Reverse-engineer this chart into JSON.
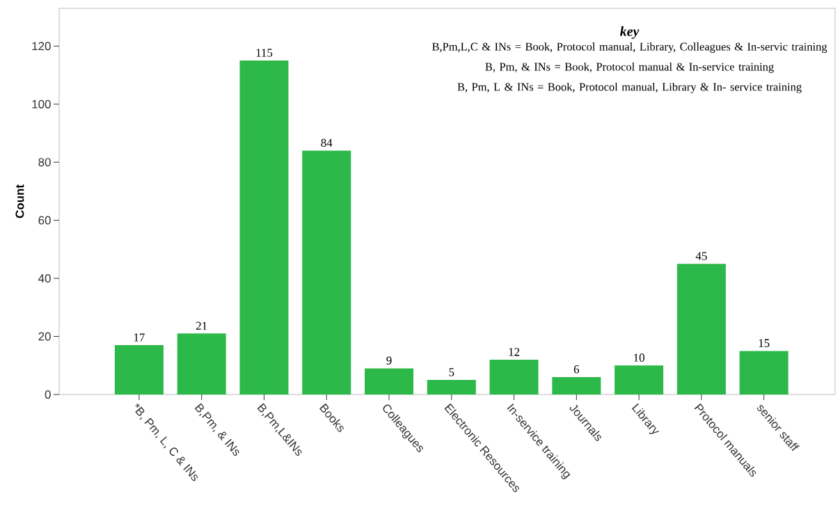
{
  "chart_data": {
    "type": "bar",
    "ylabel": "Count",
    "categories": [
      "*B, Pm, L, C & INs",
      "B,Pm, & INs",
      "B,Pm,L&INs",
      "Books",
      "Colleagues",
      "Electronic Resources",
      "In-service training",
      "Journals",
      "Library",
      "Protocol manuals",
      "senior staff"
    ],
    "values": [
      17,
      21,
      115,
      84,
      9,
      5,
      12,
      6,
      10,
      45,
      15
    ],
    "color": "#2db84a",
    "data_labels": true,
    "grid": false,
    "ylim": [
      0,
      133
    ],
    "yticks": [
      0,
      20,
      40,
      60,
      80,
      100,
      120
    ],
    "annotations": [
      "key",
      "B,Pm,L,C & INs = Book, Protocol manual, Library, Colleagues & In-servic training",
      "B, Pm, & INs = Book, Protocol manual & In-service training",
      "B, Pm, L & INs  = Book, Protocol manual, Library & In- service training"
    ]
  }
}
